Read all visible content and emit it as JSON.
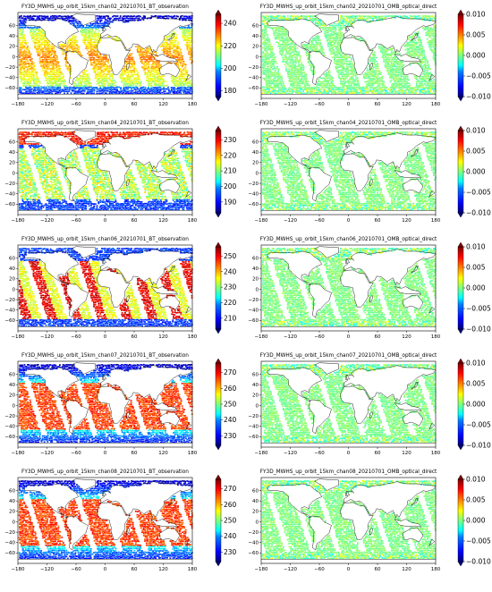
{
  "axis_ticks": {
    "lon": [
      "−180",
      "−120",
      "−60",
      "0",
      "60",
      "120",
      "180"
    ],
    "lat": [
      "60",
      "40",
      "20",
      "0",
      "−20",
      "−40",
      "−60"
    ]
  },
  "panels": [
    {
      "left": {
        "title": "FY3D_MWHS_up_orbit_15km_chan02_20210701_BT_observation",
        "colorbar_ticks": [
          "240",
          "220",
          "200",
          "180"
        ],
        "range": [
          175,
          248
        ]
      },
      "right": {
        "title": "FY3D_MWHS_up_orbit_15km_chan02_20210701_OMB_optical_direct",
        "colorbar_ticks": [
          "0.010",
          "0.005",
          "0.000",
          "−0.005",
          "−0.010"
        ]
      }
    },
    {
      "left": {
        "title": "FY3D_MWHS_up_orbit_15km_chan04_20210701_BT_observation",
        "colorbar_ticks": [
          "230",
          "220",
          "210",
          "200",
          "190"
        ],
        "range": [
          183,
          236
        ]
      },
      "right": {
        "title": "FY3D_MWHS_up_orbit_15km_chan04_20210701_OMB_optical_direct",
        "colorbar_ticks": [
          "0.010",
          "0.005",
          "0.000",
          "−0.005",
          "−0.010"
        ]
      }
    },
    {
      "left": {
        "title": "FY3D_MWHS_up_orbit_15km_chan06_20210701_BT_observation",
        "colorbar_ticks": [
          "250",
          "240",
          "230",
          "220",
          "210"
        ],
        "range": [
          203,
          256
        ]
      },
      "right": {
        "title": "FY3D_MWHS_up_orbit_15km_chan06_20210701_OMB_optical_direct",
        "colorbar_ticks": [
          "0.010",
          "0.005",
          "0.000",
          "−0.005",
          "−0.010"
        ]
      }
    },
    {
      "left": {
        "title": "FY3D_MWHS_up_orbit_15km_chan07_20210701_BT_observation",
        "colorbar_ticks": [
          "270",
          "260",
          "250",
          "240",
          "230"
        ],
        "range": [
          224,
          276
        ]
      },
      "right": {
        "title": "FY3D_MWHS_up_orbit_15km_chan07_20210701_OMB_optical_direct",
        "colorbar_ticks": [
          "0.010",
          "0.005",
          "0.000",
          "−0.005",
          "−0.010"
        ]
      }
    },
    {
      "left": {
        "title": "FY3D_MWHS_up_orbit_15km_chan08_20210701_BT_observation",
        "colorbar_ticks": [
          "270",
          "260",
          "250",
          "240",
          "230"
        ],
        "range": [
          224,
          276
        ]
      },
      "right": {
        "title": "FY3D_MWHS_up_orbit_15km_chan08_20210701_OMB_optical_direct",
        "colorbar_ticks": [
          "0.010",
          "0.005",
          "0.000",
          "−0.005",
          "−0.010"
        ]
      }
    }
  ],
  "colormap": [
    "#00007f",
    "#0000ff",
    "#007fff",
    "#00ffff",
    "#7fff7f",
    "#ffff00",
    "#ff7f00",
    "#ff0000",
    "#7f0000"
  ]
}
